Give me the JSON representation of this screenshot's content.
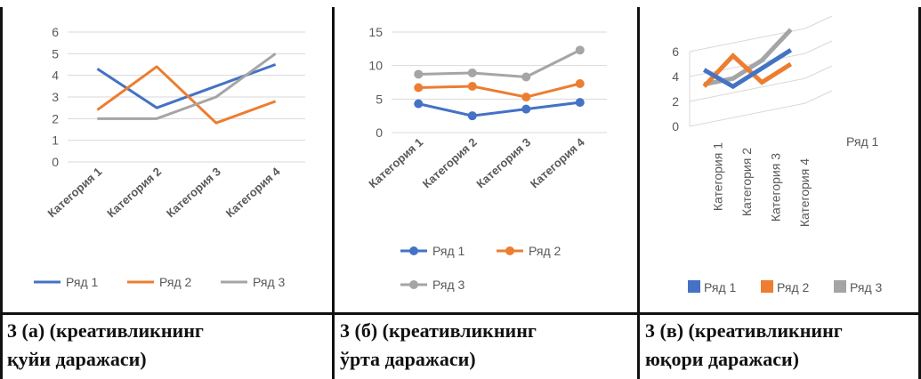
{
  "colors": {
    "series1": "#4472c4",
    "series2": "#ed7d31",
    "series3": "#a5a5a5",
    "grid": "#d9d9d9",
    "axis_text": "#595959"
  },
  "chart_data": [
    {
      "type": "line",
      "categories": [
        "Категория 1",
        "Категория 2",
        "Категория 3",
        "Категория 4"
      ],
      "series": [
        {
          "name": "Ряд 1",
          "values": [
            4.3,
            2.5,
            3.5,
            4.5
          ]
        },
        {
          "name": "Ряд 2",
          "values": [
            2.4,
            4.4,
            1.8,
            2.8
          ]
        },
        {
          "name": "Ряд 3",
          "values": [
            2,
            2,
            3,
            5
          ]
        }
      ],
      "yticks": [
        "0",
        "1",
        "2",
        "3",
        "4",
        "5",
        "6"
      ],
      "ylim": [
        0,
        6
      ],
      "grid": true,
      "markers": false,
      "legend": "bottom"
    },
    {
      "type": "line",
      "stacked": true,
      "categories": [
        "Категория 1",
        "Категория 2",
        "Категория 3",
        "Категория 4"
      ],
      "series": [
        {
          "name": "Ряд 1",
          "values": [
            4.3,
            2.5,
            3.5,
            4.5
          ]
        },
        {
          "name": "Ряд 2",
          "values": [
            2.4,
            4.4,
            1.8,
            2.8
          ]
        },
        {
          "name": "Ряд 3",
          "values": [
            2,
            2,
            3,
            5
          ]
        }
      ],
      "yticks": [
        "0",
        "5",
        "10",
        "15"
      ],
      "ylim": [
        0,
        15
      ],
      "grid": true,
      "markers": true,
      "legend": "bottom"
    },
    {
      "type": "line",
      "view": "3d",
      "categories": [
        "Категория 1",
        "Категория 2",
        "Категория 3",
        "Категория 4"
      ],
      "series": [
        {
          "name": "Ряд 1",
          "values": [
            4.3,
            2.5,
            3.5,
            4.5
          ]
        },
        {
          "name": "Ряд 2",
          "values": [
            2.4,
            4.4,
            1.8,
            2.8
          ]
        },
        {
          "name": "Ряд 3",
          "values": [
            2,
            2,
            3,
            5
          ]
        }
      ],
      "yticks": [
        "0",
        "2",
        "4",
        "6"
      ],
      "ylim": [
        0,
        6
      ],
      "depth_label": "Ряд 1",
      "grid": true,
      "legend": "bottom"
    }
  ],
  "captions": [
    {
      "line1": "3 (а) (креативликнинг",
      "line2": "қуйи даражаси)"
    },
    {
      "line1": "3 (б) (креативликнинг",
      "line2": "ўрта даражаси)"
    },
    {
      "line1": "3 (в) (креативликнинг",
      "line2": "юқори даражаси)"
    }
  ]
}
